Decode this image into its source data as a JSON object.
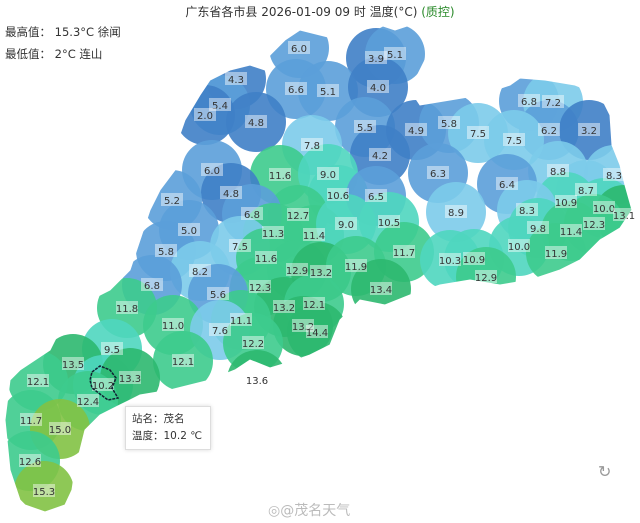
{
  "header": {
    "title": "广东省各市县 2026-01-09 09 时 温度(°C)",
    "qc_link": "(质控)"
  },
  "stats": {
    "max": "最高值：  15.3°C 徐闻",
    "min": "最低值：  2°C 连山"
  },
  "tooltip": {
    "station": "站名：茂名",
    "temp": "温度：10.2 ℃"
  },
  "watermark": "@茂名天气",
  "icons": {
    "loading": "refresh-icon",
    "weibo": "weibo-icon"
  },
  "color_scale": [
    {
      "max": 5,
      "color": "#3f7fc6"
    },
    {
      "max": 7,
      "color": "#5b9fd9"
    },
    {
      "max": 9,
      "color": "#7ccbea"
    },
    {
      "max": 11,
      "color": "#4fd6bf"
    },
    {
      "max": 13,
      "color": "#3dcb8d"
    },
    {
      "max": 15,
      "color": "#2cb86f"
    },
    {
      "max": 99,
      "color": "#82c244"
    }
  ],
  "highlight_station": "茂名",
  "values": [
    "6.0",
    "3.9",
    "5.1",
    "4.3",
    "6.6",
    "5.1",
    "4.0",
    "5.4",
    "2.0",
    "4.8",
    "5.5",
    "4.9",
    "5.8",
    "7.5",
    "6.8",
    "7.2",
    "6.2",
    "3.2",
    "7.5",
    "7.8",
    "4.2",
    "6.0",
    "11.6",
    "9.0",
    "6.3",
    "8.8",
    "8.3",
    "10.6",
    "6.5",
    "6.4",
    "8.7",
    "4.8",
    "5.2",
    "10.9",
    "10.0",
    "13.1",
    "12.7",
    "6.8",
    "5.0",
    "11.3",
    "11.4",
    "9.0",
    "10.5",
    "8.9",
    "8.3",
    "9.8",
    "11.4",
    "12.3",
    "7.5",
    "5.8",
    "11.6",
    "12.9",
    "13.2",
    "11.9",
    "11.7",
    "10.3",
    "10.9",
    "10.0",
    "11.9",
    "12.9",
    "8.2",
    "6.8",
    "12.3",
    "5.6",
    "13.2",
    "12.1",
    "13.4",
    "11.8",
    "11.0",
    "11.1",
    "7.6",
    "13.2",
    "14.4",
    "12.2",
    "9.5",
    "13.5",
    "12.1",
    "12.1",
    "10.2",
    "13.3",
    "13.6",
    "12.4",
    "11.7",
    "15.0",
    "12.6",
    "15.3"
  ]
}
